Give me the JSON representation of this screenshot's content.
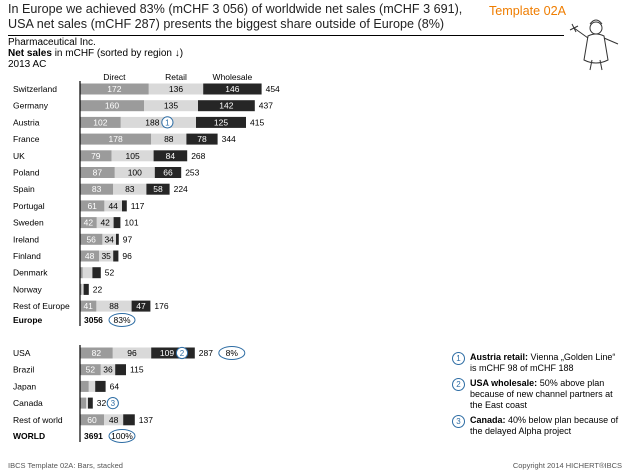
{
  "headline": "In Europe we achieved 83% (mCHF 3 056) of worldwide net sales (mCHF 3 691), USA net sales (mCHF 287) presents the biggest share outside of Europe (8%)",
  "template_label": "Template 02A",
  "meta": {
    "company": "Pharmaceutical Inc.",
    "measure_bold": "Net sales",
    "measure_rest": " in mCHF (sorted by region ↓)",
    "period": "2013 AC"
  },
  "footer": {
    "left": "IBCS Template 02A: Bars, stacked",
    "right": "Copyright 2014 HICHERT®IBCS"
  },
  "colors": {
    "direct": "#9b9b9b",
    "retail": "#d9d9d9",
    "wholesale": "#262626",
    "highlight": "#2e6da4",
    "accent": "#ef7d00"
  },
  "notes": [
    {
      "num": "1",
      "bold": "Austria retail:",
      "text": " Vienna „Golden Line“ is mCHF 98 of mCHF 188"
    },
    {
      "num": "2",
      "bold": "USA wholesale:",
      "text": " 50% above plan because of new channel partners at the East coast"
    },
    {
      "num": "3",
      "bold": "Canada:",
      "text": " 40% below plan because of the delayed Alpha project"
    }
  ],
  "chart_data": {
    "type": "bar",
    "orientation": "horizontal",
    "stacked": true,
    "series_names": [
      "Direct",
      "Retail",
      "Wholesale"
    ],
    "groups": [
      {
        "rows": [
          {
            "label": "Switzerland",
            "values": [
              172,
              136,
              146
            ],
            "total": "454"
          },
          {
            "label": "Germany",
            "values": [
              160,
              135,
              142
            ],
            "total": "437"
          },
          {
            "label": "Austria",
            "values": [
              102,
              188,
              125
            ],
            "total": "415",
            "marker": "1",
            "marker_segment": 1
          },
          {
            "label": "France",
            "values": [
              178,
              88,
              78
            ],
            "total": "344"
          },
          {
            "label": "UK",
            "values": [
              79,
              105,
              84
            ],
            "total": "268"
          },
          {
            "label": "Poland",
            "values": [
              87,
              100,
              66
            ],
            "total": "253"
          },
          {
            "label": "Spain",
            "values": [
              83,
              83,
              58
            ],
            "total": "224"
          },
          {
            "label": "Portugal",
            "values": [
              61,
              44,
              12
            ],
            "total": "117"
          },
          {
            "label": "Sweden",
            "values": [
              42,
              42,
              17
            ],
            "total": "101"
          },
          {
            "label": "Ireland",
            "values": [
              56,
              34,
              7
            ],
            "total": "97"
          },
          {
            "label": "Finland",
            "values": [
              48,
              35,
              13
            ],
            "total": "96"
          },
          {
            "label": "Denmark",
            "values": [
              7,
              24,
              21
            ],
            "total": "52"
          },
          {
            "label": "Norway",
            "values": [
              4,
              5,
              13
            ],
            "total": "22"
          },
          {
            "label": "Rest of Europe",
            "values": [
              41,
              88,
              47
            ],
            "total": "176"
          }
        ],
        "subtotal": {
          "label": "Europe",
          "value": "3056",
          "share": "83%"
        }
      },
      {
        "rows": [
          {
            "label": "USA",
            "values": [
              82,
              96,
              109
            ],
            "total": "287",
            "share": "8%",
            "marker": "2",
            "marker_segment": 2
          },
          {
            "label": "Brazil",
            "values": [
              52,
              36,
              27
            ],
            "total": "115"
          },
          {
            "label": "Japan",
            "values": [
              22,
              16,
              26
            ],
            "total": "64"
          },
          {
            "label": "Canada",
            "values": [
              15,
              5,
              12
            ],
            "total": "32",
            "marker": "3",
            "marker_after_total": true
          },
          {
            "label": "Rest of world",
            "values": [
              60,
              48,
              29
            ],
            "total": "137"
          }
        ],
        "subtotal": {
          "label": "WORLD",
          "value": "3691",
          "share": "100%"
        }
      }
    ]
  }
}
